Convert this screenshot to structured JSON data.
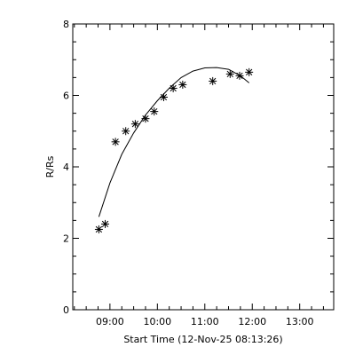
{
  "chart_data": {
    "type": "scatter",
    "title": "",
    "xlabel": "Start Time (12-Nov-25 08:13:26)",
    "ylabel": "R/Rs",
    "xlim": [
      "08:13",
      "13:43"
    ],
    "ylim": [
      0,
      8
    ],
    "xticks": [
      "09:00",
      "10:00",
      "11:00",
      "12:00",
      "13:00"
    ],
    "yticks": [
      "0",
      "2",
      "4",
      "6",
      "8"
    ],
    "grid": false,
    "series": [
      {
        "marker": "asterisk",
        "points": [
          {
            "x": "08:46",
            "y": 2.25
          },
          {
            "x": "08:54",
            "y": 2.4
          },
          {
            "x": "09:07",
            "y": 4.7
          },
          {
            "x": "09:20",
            "y": 5.0
          },
          {
            "x": "09:32",
            "y": 5.2
          },
          {
            "x": "09:45",
            "y": 5.35
          },
          {
            "x": "09:56",
            "y": 5.55
          },
          {
            "x": "10:08",
            "y": 5.95
          },
          {
            "x": "10:20",
            "y": 6.2
          },
          {
            "x": "10:32",
            "y": 6.3
          },
          {
            "x": "11:10",
            "y": 6.4
          },
          {
            "x": "11:32",
            "y": 6.6
          },
          {
            "x": "11:44",
            "y": 6.55
          },
          {
            "x": "11:56",
            "y": 6.65
          }
        ]
      },
      {
        "style": "line",
        "points": [
          {
            "x": "08:46",
            "y": 2.6
          },
          {
            "x": "09:00",
            "y": 3.55
          },
          {
            "x": "09:15",
            "y": 4.35
          },
          {
            "x": "09:30",
            "y": 4.95
          },
          {
            "x": "09:45",
            "y": 5.45
          },
          {
            "x": "10:00",
            "y": 5.85
          },
          {
            "x": "10:15",
            "y": 6.2
          },
          {
            "x": "10:30",
            "y": 6.5
          },
          {
            "x": "10:45",
            "y": 6.68
          },
          {
            "x": "11:00",
            "y": 6.77
          },
          {
            "x": "11:15",
            "y": 6.78
          },
          {
            "x": "11:30",
            "y": 6.73
          },
          {
            "x": "11:45",
            "y": 6.55
          },
          {
            "x": "11:56",
            "y": 6.35
          }
        ]
      }
    ]
  }
}
